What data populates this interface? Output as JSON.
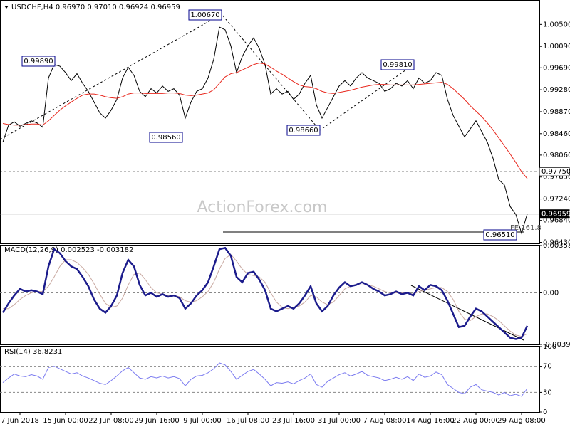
{
  "chart_data": [
    {
      "type": "line",
      "title": "USDCHF,H4  0.96970 0.97010 0.96924 0.96959",
      "watermark": "ActionForex.com",
      "ylim": [
        0.9641,
        1.0093
      ],
      "grid": false,
      "yticks": [
        {
          "value": 1.005,
          "label": "1.00500"
        },
        {
          "value": 1.0009,
          "label": "1.00090"
        },
        {
          "value": 0.9969,
          "label": "0.99690"
        },
        {
          "value": 0.9928,
          "label": "0.99280"
        },
        {
          "value": 0.9887,
          "label": "0.98870"
        },
        {
          "value": 0.9846,
          "label": "0.98460"
        },
        {
          "value": 0.9806,
          "label": "0.98060"
        },
        {
          "value": 0.9765,
          "label": "0.97650"
        },
        {
          "value": 0.9724,
          "label": "0.97240"
        },
        {
          "value": 0.9684,
          "label": "0.96840"
        },
        {
          "value": 0.9643,
          "label": "0.96430"
        }
      ],
      "levels": [
        {
          "value": 0.9775,
          "label": "0.97750",
          "style": "dashed"
        },
        {
          "value": 0.96959,
          "label": "0.96959",
          "style": "solid"
        }
      ],
      "annotations": [
        "1.00670",
        "0.99890",
        "0.98560",
        "0.98660",
        "0.99810",
        "0.96510",
        "FE 161.8"
      ],
      "series": [
        {
          "color": "#000000",
          "values": [
            0.983,
            0.9862,
            0.9868,
            0.986,
            0.9865,
            0.987,
            0.9866,
            0.9858,
            0.995,
            0.9975,
            0.9972,
            0.996,
            0.9945,
            0.9958,
            0.994,
            0.9925,
            0.9905,
            0.9885,
            0.9875,
            0.989,
            0.991,
            0.995,
            0.997,
            0.9955,
            0.9925,
            0.9915,
            0.993,
            0.9922,
            0.9935,
            0.9925,
            0.993,
            0.9918,
            0.9875,
            0.9905,
            0.9925,
            0.993,
            0.995,
            0.9985,
            1.0045,
            1.004,
            1.001,
            0.996,
            0.999,
            1.001,
            1.0025,
            1.0005,
            0.9975,
            0.992,
            0.993,
            0.992,
            0.9925,
            0.991,
            0.992,
            0.994,
            0.9955,
            0.99,
            0.9875,
            0.9895,
            0.9915,
            0.9935,
            0.9945,
            0.9935,
            0.995,
            0.996,
            0.995,
            0.9945,
            0.994,
            0.9925,
            0.993,
            0.994,
            0.9935,
            0.9945,
            0.993,
            0.995,
            0.994,
            0.9945,
            0.996,
            0.9955,
            0.991,
            0.988,
            0.986,
            0.984,
            0.9855,
            0.987,
            0.985,
            0.983,
            0.98,
            0.976,
            0.975,
            0.971,
            0.9695,
            0.966,
            0.9696
          ]
        },
        {
          "color": "#e8281e",
          "values": [
            0.9865,
            0.9863,
            0.9862,
            0.9862,
            0.9863,
            0.9864,
            0.9864,
            0.9862,
            0.987,
            0.988,
            0.989,
            0.9898,
            0.9905,
            0.9912,
            0.9918,
            0.992,
            0.992,
            0.9918,
            0.9915,
            0.9913,
            0.9912,
            0.9915,
            0.992,
            0.9922,
            0.9922,
            0.9921,
            0.9921,
            0.9921,
            0.9921,
            0.9922,
            0.9922,
            0.9921,
            0.9918,
            0.9917,
            0.9918,
            0.992,
            0.9922,
            0.9928,
            0.994,
            0.9952,
            0.9958,
            0.996,
            0.9965,
            0.997,
            0.9975,
            0.9978,
            0.9976,
            0.997,
            0.9963,
            0.9957,
            0.995,
            0.9943,
            0.9937,
            0.9934,
            0.9933,
            0.993,
            0.9925,
            0.9922,
            0.9921,
            0.9923,
            0.9925,
            0.9927,
            0.993,
            0.9933,
            0.9935,
            0.9937,
            0.9938,
            0.9938,
            0.9937,
            0.9937,
            0.9937,
            0.9937,
            0.9937,
            0.9938,
            0.9939,
            0.994,
            0.9941,
            0.9942,
            0.9938,
            0.993,
            0.992,
            0.991,
            0.9898,
            0.9888,
            0.9878,
            0.9866,
            0.9853,
            0.9838,
            0.9823,
            0.9808,
            0.9792,
            0.9775,
            0.9762
          ]
        }
      ]
    },
    {
      "type": "line",
      "title": "MACD(12,26,9) 0.002523 -0.003182",
      "ylim": [
        -0.003908,
        0.00358
      ],
      "grid": true,
      "yticks": [
        0.00358,
        {
          "value": 0,
          "label": "0.00"
        },
        -0.003908
      ],
      "series": [
        {
          "color": "#c8a8a0",
          "values": [
            -0.0012,
            -0.0012,
            -0.0009,
            -0.0005,
            -0.0002,
            0.0,
            0.0001,
            0.0001,
            0.0005,
            0.0012,
            0.002,
            0.0025,
            0.0025,
            0.0023,
            0.0019,
            0.0014,
            0.0007,
            -0.0001,
            -0.0008,
            -0.0011,
            -0.001,
            -0.0004,
            0.0006,
            0.0014,
            0.0015,
            0.001,
            0.0004,
            0.0,
            -0.0001,
            -0.0002,
            -0.0002,
            -0.0003,
            -0.0006,
            -0.0007,
            -0.0006,
            -0.0003,
            0.0001,
            0.0008,
            0.0018,
            0.0026,
            0.0029,
            0.0024,
            0.0018,
            0.0014,
            0.0013,
            0.0012,
            0.0008,
            0.0,
            -0.0007,
            -0.0011,
            -0.0012,
            -0.0011,
            -0.001,
            -0.0007,
            -0.0002,
            -0.0003,
            -0.0007,
            -0.0009,
            -0.0007,
            -0.0002,
            0.0003,
            0.0005,
            0.0006,
            0.0006,
            0.0006,
            0.0005,
            0.0003,
            0.0001,
            0.0,
            0.0,
            0.0,
            0.0,
            -0.0001,
            0.0001,
            0.0002,
            0.0003,
            0.0004,
            0.0004,
            0.0001,
            -0.0005,
            -0.0014,
            -0.002,
            -0.0021,
            -0.0018,
            -0.0016,
            -0.0016,
            -0.0018,
            -0.0021,
            -0.0025,
            -0.0029,
            -0.0032,
            -0.0033,
            -0.0031
          ]
        },
        {
          "color": "#1c1c8c",
          "values": [
            -0.0015,
            -0.0008,
            -0.0002,
            0.0003,
            0.0001,
            0.0002,
            0.0001,
            -0.0001,
            0.002,
            0.0033,
            0.003,
            0.0024,
            0.002,
            0.0018,
            0.0012,
            0.0005,
            -0.0005,
            -0.0012,
            -0.0015,
            -0.001,
            -0.0002,
            0.0015,
            0.0025,
            0.002,
            0.0006,
            -0.0002,
            0.0,
            -0.0003,
            -0.0001,
            -0.0003,
            -0.0002,
            -0.0004,
            -0.0012,
            -0.0008,
            -0.0002,
            0.0002,
            0.0008,
            0.002,
            0.0033,
            0.0034,
            0.0028,
            0.0012,
            0.0008,
            0.0015,
            0.0016,
            0.001,
            0.0002,
            -0.0012,
            -0.0014,
            -0.0012,
            -0.001,
            -0.0012,
            -0.0008,
            -0.0002,
            0.0005,
            -0.0008,
            -0.0014,
            -0.001,
            -0.0002,
            0.0004,
            0.0008,
            0.0005,
            0.0006,
            0.0008,
            0.0006,
            0.0003,
            0.0001,
            -0.0002,
            -0.0001,
            0.0001,
            -0.0001,
            0.0,
            -0.0002,
            0.0005,
            0.0002,
            0.0006,
            0.0005,
            0.0002,
            -0.0006,
            -0.0016,
            -0.0026,
            -0.0025,
            -0.0018,
            -0.0012,
            -0.0014,
            -0.0018,
            -0.0022,
            -0.0026,
            -0.003,
            -0.0034,
            -0.0035,
            -0.0034,
            -0.0025
          ]
        }
      ]
    },
    {
      "type": "line",
      "title": "RSI(14) 36.8231",
      "ylim": [
        0,
        100
      ],
      "grid": true,
      "yticks": [
        100,
        70,
        30,
        0
      ],
      "categories": [
        null,
        null,
        null,
        "7 Jun 2018",
        null,
        null,
        null,
        null,
        null,
        null,
        null,
        "15 Jun 00:00",
        null,
        null,
        null,
        null,
        null,
        null,
        null,
        "22 Jun 08:00",
        null,
        null,
        null,
        null,
        null,
        null,
        null,
        "29 Jun 16:00",
        null,
        null,
        null,
        null,
        null,
        null,
        null,
        "9 Jul 00:00",
        null,
        null,
        null,
        null,
        null,
        null,
        null,
        "16 Jul 08:00",
        null,
        null,
        null,
        null,
        null,
        null,
        null,
        "23 Jul 16:00",
        null,
        null,
        null,
        null,
        null,
        null,
        null,
        "31 Jul 00:00",
        null,
        null,
        null,
        null,
        null,
        null,
        null,
        "7 Aug 08:00",
        null,
        null,
        null,
        null,
        null,
        null,
        null,
        "14 Aug 16:00",
        null,
        null,
        null,
        null,
        null,
        null,
        null,
        "22 Aug 00:00",
        null,
        null,
        null,
        null,
        null,
        null,
        null,
        "29 Aug 08:00",
        null
      ],
      "series": [
        {
          "color": "#7b7bf0",
          "values": [
            45,
            52,
            58,
            55,
            54,
            57,
            55,
            50,
            68,
            70,
            66,
            62,
            58,
            60,
            55,
            52,
            48,
            44,
            42,
            48,
            55,
            63,
            68,
            60,
            52,
            50,
            54,
            52,
            55,
            52,
            54,
            51,
            40,
            50,
            55,
            56,
            60,
            66,
            75,
            72,
            62,
            50,
            56,
            62,
            65,
            58,
            50,
            40,
            45,
            44,
            46,
            43,
            48,
            52,
            58,
            42,
            38,
            47,
            52,
            57,
            60,
            55,
            58,
            62,
            56,
            54,
            52,
            48,
            50,
            53,
            50,
            54,
            48,
            58,
            53,
            55,
            61,
            57,
            42,
            36,
            30,
            28,
            38,
            42,
            34,
            32,
            30,
            26,
            30,
            25,
            27,
            24,
            36
          ]
        }
      ]
    }
  ]
}
